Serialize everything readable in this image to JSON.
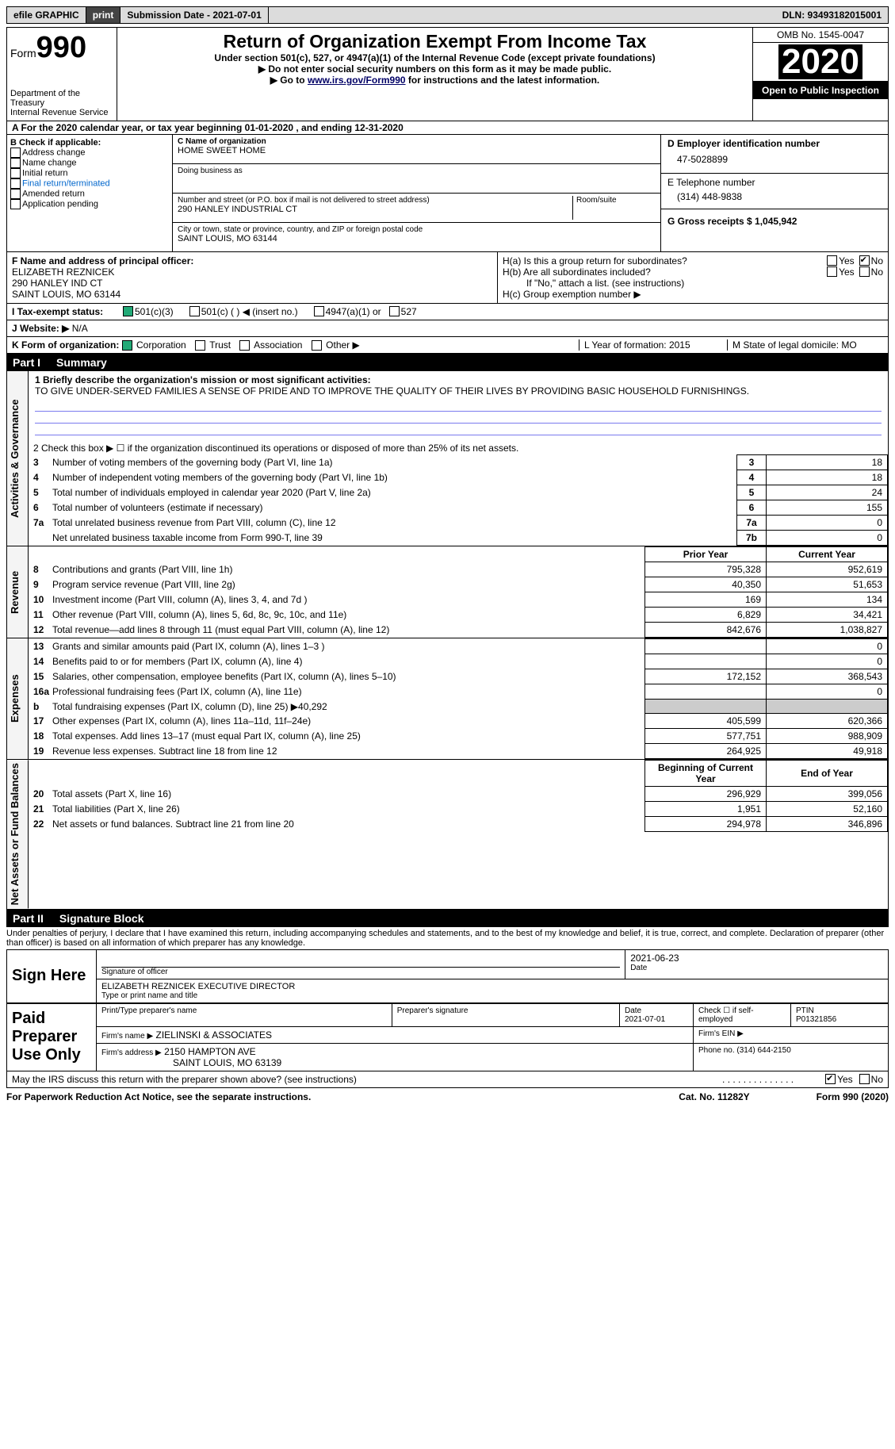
{
  "toolbar": {
    "efile": "efile GRAPHIC",
    "print": "print",
    "sub_date_label": "Submission Date - 2021-07-01",
    "dln_label": "DLN: 93493182015001"
  },
  "header": {
    "form_small": "Form",
    "form_num": "990",
    "dept": "Department of the Treasury\nInternal Revenue Service",
    "title": "Return of Organization Exempt From Income Tax",
    "sub1": "Under section 501(c), 527, or 4947(a)(1) of the Internal Revenue Code (except private foundations)",
    "sub2": "▶ Do not enter social security numbers on this form as it may be made public.",
    "sub3_pre": "▶ Go to ",
    "sub3_link": "www.irs.gov/Form990",
    "sub3_post": " for instructions and the latest information.",
    "omb": "OMB No. 1545-0047",
    "year": "2020",
    "inspection": "Open to Public Inspection"
  },
  "row_a": "A For the 2020 calendar year, or tax year beginning 01-01-2020   , and ending 12-31-2020",
  "box_b": {
    "label": "B Check if applicable:",
    "items": [
      "Address change",
      "Name change",
      "Initial return",
      "Final return/terminated",
      "Amended return",
      "Application pending"
    ]
  },
  "box_c": {
    "name_label": "C Name of organization",
    "name": "HOME SWEET HOME",
    "dba_label": "Doing business as",
    "addr_label": "Number and street (or P.O. box if mail is not delivered to street address)",
    "room_label": "Room/suite",
    "addr": "290 HANLEY INDUSTRIAL CT",
    "city_label": "City or town, state or province, country, and ZIP or foreign postal code",
    "city": "SAINT LOUIS, MO  63144"
  },
  "box_d": {
    "label": "D Employer identification number",
    "value": "47-5028899",
    "tel_label": "E Telephone number",
    "tel": "(314) 448-9838",
    "gross_label": "G Gross receipts $ 1,045,942"
  },
  "box_f": {
    "label": "F  Name and address of principal officer:",
    "name": "ELIZABETH REZNICEK",
    "addr1": "290 HANLEY IND CT",
    "addr2": "SAINT LOUIS, MO  63144"
  },
  "box_h": {
    "a": "H(a)  Is this a group return for subordinates?",
    "b": "H(b)  Are all subordinates included?",
    "b_note": "If \"No,\" attach a list. (see instructions)",
    "c": "H(c)  Group exemption number ▶",
    "yes": "Yes",
    "no": "No"
  },
  "row_i": {
    "label": "I   Tax-exempt status:",
    "o1": "501(c)(3)",
    "o2": "501(c) (  ) ◀ (insert no.)",
    "o3": "4947(a)(1) or",
    "o4": "527"
  },
  "row_j": {
    "label": "J   Website: ▶",
    "value": "N/A"
  },
  "row_k": {
    "label": "K Form of organization:",
    "o1": "Corporation",
    "o2": "Trust",
    "o3": "Association",
    "o4": "Other ▶"
  },
  "row_l": "L Year of formation: 2015",
  "row_m": "M State of legal domicile: MO",
  "part1": {
    "header_num": "Part I",
    "header_title": "Summary",
    "q1_label": "1  Briefly describe the organization's mission or most significant activities:",
    "q1_text": "TO GIVE UNDER-SERVED FAMILIES A SENSE OF PRIDE AND TO IMPROVE THE QUALITY OF THEIR LIVES BY PROVIDING BASIC HOUSEHOLD FURNISHINGS.",
    "q2": "2   Check this box ▶ ☐  if the organization discontinued its operations or disposed of more than 25% of its net assets.",
    "side_gov": "Activities & Governance",
    "side_rev": "Revenue",
    "side_exp": "Expenses",
    "side_net": "Net Assets or Fund Balances",
    "prior_year": "Prior Year",
    "current_year": "Current Year",
    "begin_year": "Beginning of Current Year",
    "end_year": "End of Year",
    "gov_lines": [
      {
        "n": "3",
        "d": "Number of voting members of the governing body (Part VI, line 1a)",
        "k": "3",
        "v": "18"
      },
      {
        "n": "4",
        "d": "Number of independent voting members of the governing body (Part VI, line 1b)",
        "k": "4",
        "v": "18"
      },
      {
        "n": "5",
        "d": "Total number of individuals employed in calendar year 2020 (Part V, line 2a)",
        "k": "5",
        "v": "24"
      },
      {
        "n": "6",
        "d": "Total number of volunteers (estimate if necessary)",
        "k": "6",
        "v": "155"
      },
      {
        "n": "7a",
        "d": "Total unrelated business revenue from Part VIII, column (C), line 12",
        "k": "7a",
        "v": "0"
      },
      {
        "n": "",
        "d": "Net unrelated business taxable income from Form 990-T, line 39",
        "k": "7b",
        "v": "0"
      }
    ],
    "rev_lines": [
      {
        "n": "8",
        "d": "Contributions and grants (Part VIII, line 1h)",
        "p": "795,328",
        "c": "952,619"
      },
      {
        "n": "9",
        "d": "Program service revenue (Part VIII, line 2g)",
        "p": "40,350",
        "c": "51,653"
      },
      {
        "n": "10",
        "d": "Investment income (Part VIII, column (A), lines 3, 4, and 7d )",
        "p": "169",
        "c": "134"
      },
      {
        "n": "11",
        "d": "Other revenue (Part VIII, column (A), lines 5, 6d, 8c, 9c, 10c, and 11e)",
        "p": "6,829",
        "c": "34,421"
      },
      {
        "n": "12",
        "d": "Total revenue—add lines 8 through 11 (must equal Part VIII, column (A), line 12)",
        "p": "842,676",
        "c": "1,038,827"
      }
    ],
    "exp_lines": [
      {
        "n": "13",
        "d": "Grants and similar amounts paid (Part IX, column (A), lines 1–3 )",
        "p": "",
        "c": "0"
      },
      {
        "n": "14",
        "d": "Benefits paid to or for members (Part IX, column (A), line 4)",
        "p": "",
        "c": "0"
      },
      {
        "n": "15",
        "d": "Salaries, other compensation, employee benefits (Part IX, column (A), lines 5–10)",
        "p": "172,152",
        "c": "368,543"
      },
      {
        "n": "16a",
        "d": "Professional fundraising fees (Part IX, column (A), line 11e)",
        "p": "",
        "c": "0"
      },
      {
        "n": "b",
        "d": "Total fundraising expenses (Part IX, column (D), line 25) ▶40,292",
        "p": "shade",
        "c": "shade"
      },
      {
        "n": "17",
        "d": "Other expenses (Part IX, column (A), lines 11a–11d, 11f–24e)",
        "p": "405,599",
        "c": "620,366"
      },
      {
        "n": "18",
        "d": "Total expenses. Add lines 13–17 (must equal Part IX, column (A), line 25)",
        "p": "577,751",
        "c": "988,909"
      },
      {
        "n": "19",
        "d": "Revenue less expenses. Subtract line 18 from line 12",
        "p": "264,925",
        "c": "49,918"
      }
    ],
    "net_lines": [
      {
        "n": "20",
        "d": "Total assets (Part X, line 16)",
        "p": "296,929",
        "c": "399,056"
      },
      {
        "n": "21",
        "d": "Total liabilities (Part X, line 26)",
        "p": "1,951",
        "c": "52,160"
      },
      {
        "n": "22",
        "d": "Net assets or fund balances. Subtract line 21 from line 20",
        "p": "294,978",
        "c": "346,896"
      }
    ]
  },
  "part2": {
    "header_num": "Part II",
    "header_title": "Signature Block",
    "decl": "Under penalties of perjury, I declare that I have examined this return, including accompanying schedules and statements, and to the best of my knowledge and belief, it is true, correct, and complete. Declaration of preparer (other than officer) is based on all information of which preparer has any knowledge.",
    "sign_here": "Sign Here",
    "sig_officer": "Signature of officer",
    "date": "Date",
    "date_val": "2021-06-23",
    "typed_name": "ELIZABETH REZNICEK  EXECUTIVE DIRECTOR",
    "typed_label": "Type or print name and title",
    "paid_prep": "Paid Preparer Use Only",
    "prep_name_label": "Print/Type preparer's name",
    "prep_sig_label": "Preparer's signature",
    "prep_date_label": "Date",
    "prep_date": "2021-07-01",
    "check_self": "Check ☐ if self-employed",
    "ptin_label": "PTIN",
    "ptin": "P01321856",
    "firm_name_label": "Firm's name    ▶",
    "firm_name": "ZIELINSKI & ASSOCIATES",
    "firm_ein_label": "Firm's EIN ▶",
    "firm_addr_label": "Firm's address ▶",
    "firm_addr": "2150 HAMPTON AVE",
    "firm_addr2": "SAINT LOUIS, MO  63139",
    "phone_label": "Phone no. (314) 644-2150",
    "may_irs": "May the IRS discuss this return with the preparer shown above? (see instructions)",
    "yes": "Yes",
    "no": "No"
  },
  "footer": {
    "notice": "For Paperwork Reduction Act Notice, see the separate instructions.",
    "cat": "Cat. No. 11282Y",
    "form": "Form 990 (2020)"
  }
}
